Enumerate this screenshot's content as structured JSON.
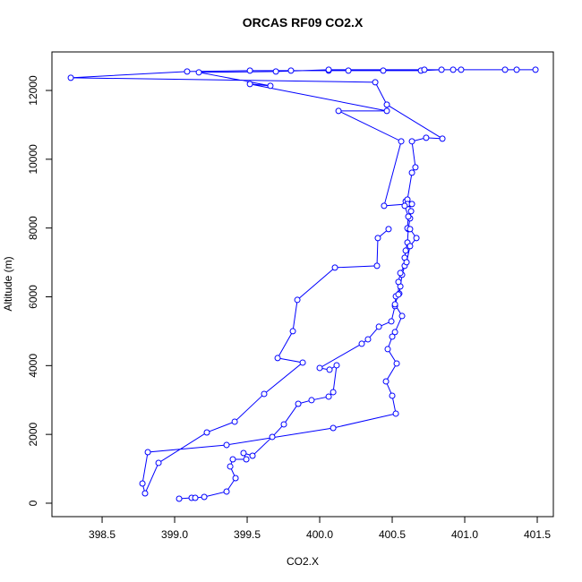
{
  "chart_data": {
    "type": "line",
    "title": "ORCAS RF09 CO2.X",
    "x_label": "CO2.X",
    "y_label": "Altitude (m)",
    "color": "#0000ff",
    "marker": "open-circle",
    "xlim": [
      398.154,
      401.611
    ],
    "ylim": [
      -391,
      13120
    ],
    "xticks": [
      398.5,
      {
        "value": 399,
        "label": "399.0"
      },
      399.5,
      {
        "value": 400,
        "label": "400.0"
      },
      400.5,
      {
        "value": 401,
        "label": "401.0"
      },
      401.5
    ],
    "yticks": [
      0,
      2000,
      4000,
      6000,
      8000,
      10000,
      12000
    ],
    "x": [
      399.031,
      399.117,
      399.142,
      399.204,
      399.358,
      399.42,
      399.383,
      399.401,
      399.494,
      399.475,
      399.537,
      399.673,
      399.753,
      399.852,
      399.944,
      400.062,
      400.093,
      400.117,
      400.068,
      400.0,
      400.29,
      400.333,
      400.408,
      400.494,
      400.519,
      400.525,
      400.549,
      400.556,
      400.568,
      400.586,
      400.586,
      400.593,
      400.605,
      400.611,
      400.623,
      400.63,
      400.617,
      400.593,
      400.605,
      400.636,
      400.66,
      400.636,
      400.734,
      400.846,
      400.463,
      400.383,
      398.284,
      399.086,
      399.519,
      399.802,
      400.062,
      400.198,
      400.438,
      400.698,
      400.84,
      400.975,
      401.278,
      401.488,
      401.358,
      400.92,
      400.722,
      400.062,
      399.698,
      399.167,
      399.66,
      399.519,
      400.463,
      400.13,
      400.562,
      400.444,
      400.605,
      400.636,
      400.586,
      400.611,
      400.605,
      400.623,
      400.667,
      400.623,
      400.599,
      400.556,
      400.543,
      400.543,
      400.519,
      400.568,
      400.519,
      400.5,
      400.469,
      400.531,
      400.457,
      400.5,
      400.525,
      400.093,
      399.358,
      398.815,
      398.778,
      398.796,
      398.889,
      399.222,
      399.414,
      399.617,
      399.883,
      399.71,
      399.815,
      399.846,
      400.105,
      400.395,
      400.401,
      400.475
    ],
    "values": [
      130,
      156,
      156,
      182,
      339,
      729,
      1068,
      1276,
      1276,
      1458,
      1380,
      1927,
      2292,
      2890,
      2995,
      3099,
      3229,
      4010,
      3880,
      3932,
      4635,
      4765,
      5130,
      5286,
      5729,
      6015,
      6093,
      6302,
      6640,
      6901,
      7135,
      7343,
      7578,
      7969,
      8281,
      8489,
      8697,
      8776,
      8828,
      9609,
      9766,
      10521,
      10625,
      10599,
      11588,
      12239,
      12369,
      12551,
      12577,
      12577,
      12577,
      12577,
      12577,
      12577,
      12603,
      12603,
      12603,
      12603,
      12603,
      12603,
      12603,
      12603,
      12551,
      12526,
      12135,
      12187,
      11406,
      11406,
      10521,
      8645,
      8697,
      8697,
      8645,
      8333,
      7994,
      7969,
      7708,
      7474,
      7005,
      6692,
      6432,
      6067,
      5781,
      5442,
      4974,
      4843,
      4479,
      4062,
      3541,
      3125,
      2604,
      2187,
      1693,
      1484,
      573,
      286,
      1172,
      2057,
      2370,
      3177,
      4088,
      4219,
      5000,
      5911,
      6849,
      6901,
      7708,
      7969
    ]
  }
}
